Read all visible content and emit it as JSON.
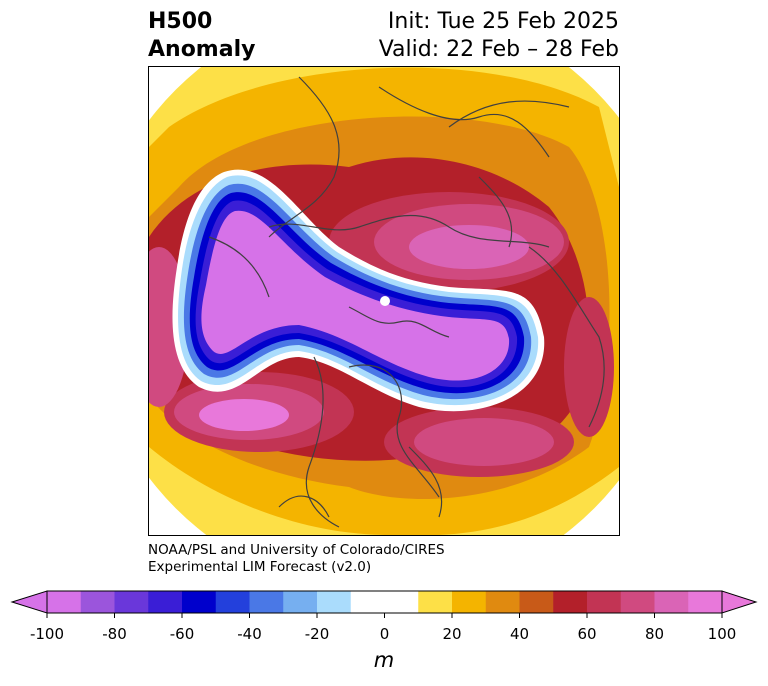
{
  "header": {
    "title_line1": "H500",
    "title_line2": "Anomaly",
    "init": "Init: Tue 25 Feb 2025",
    "valid": "Valid: 22 Feb – 28 Feb"
  },
  "credit": {
    "line1": "NOAA/PSL and University of Colorado/CIRES",
    "line2": "Experimental LIM Forecast (v2.0)"
  },
  "colorbar": {
    "unit": "m",
    "ticks": [
      "-100",
      "-80",
      "-60",
      "-40",
      "-20",
      "0",
      "20",
      "40",
      "60",
      "80",
      "100"
    ],
    "colors": [
      "#d672e8",
      "#9b55dc",
      "#6a37da",
      "#3a1ed6",
      "#0000cc",
      "#2340dc",
      "#4a78e6",
      "#76aff0",
      "#aadcfc",
      "#ffffff",
      "#ffffff",
      "#fde047",
      "#f4b400",
      "#e08a10",
      "#c85a18",
      "#b3202a",
      "#c23454",
      "#d04a80",
      "#da64b6",
      "#e878da"
    ],
    "under_color": "#d672e8",
    "over_color": "#e878da"
  },
  "map": {
    "projection": "polar stereographic, north pole centered",
    "features": [
      {
        "name": "negative anomaly trough",
        "level": "-100",
        "color": "#d672e8"
      },
      {
        "name": "positive anomaly ridge europe-asia",
        "level": "80",
        "color": "#d04a80"
      },
      {
        "name": "positive anomaly ridge north pacific",
        "level": "80",
        "color": "#d04a80"
      },
      {
        "name": "positive anomaly ridge north atlantic",
        "level": "80",
        "color": "#d04a80"
      }
    ]
  }
}
